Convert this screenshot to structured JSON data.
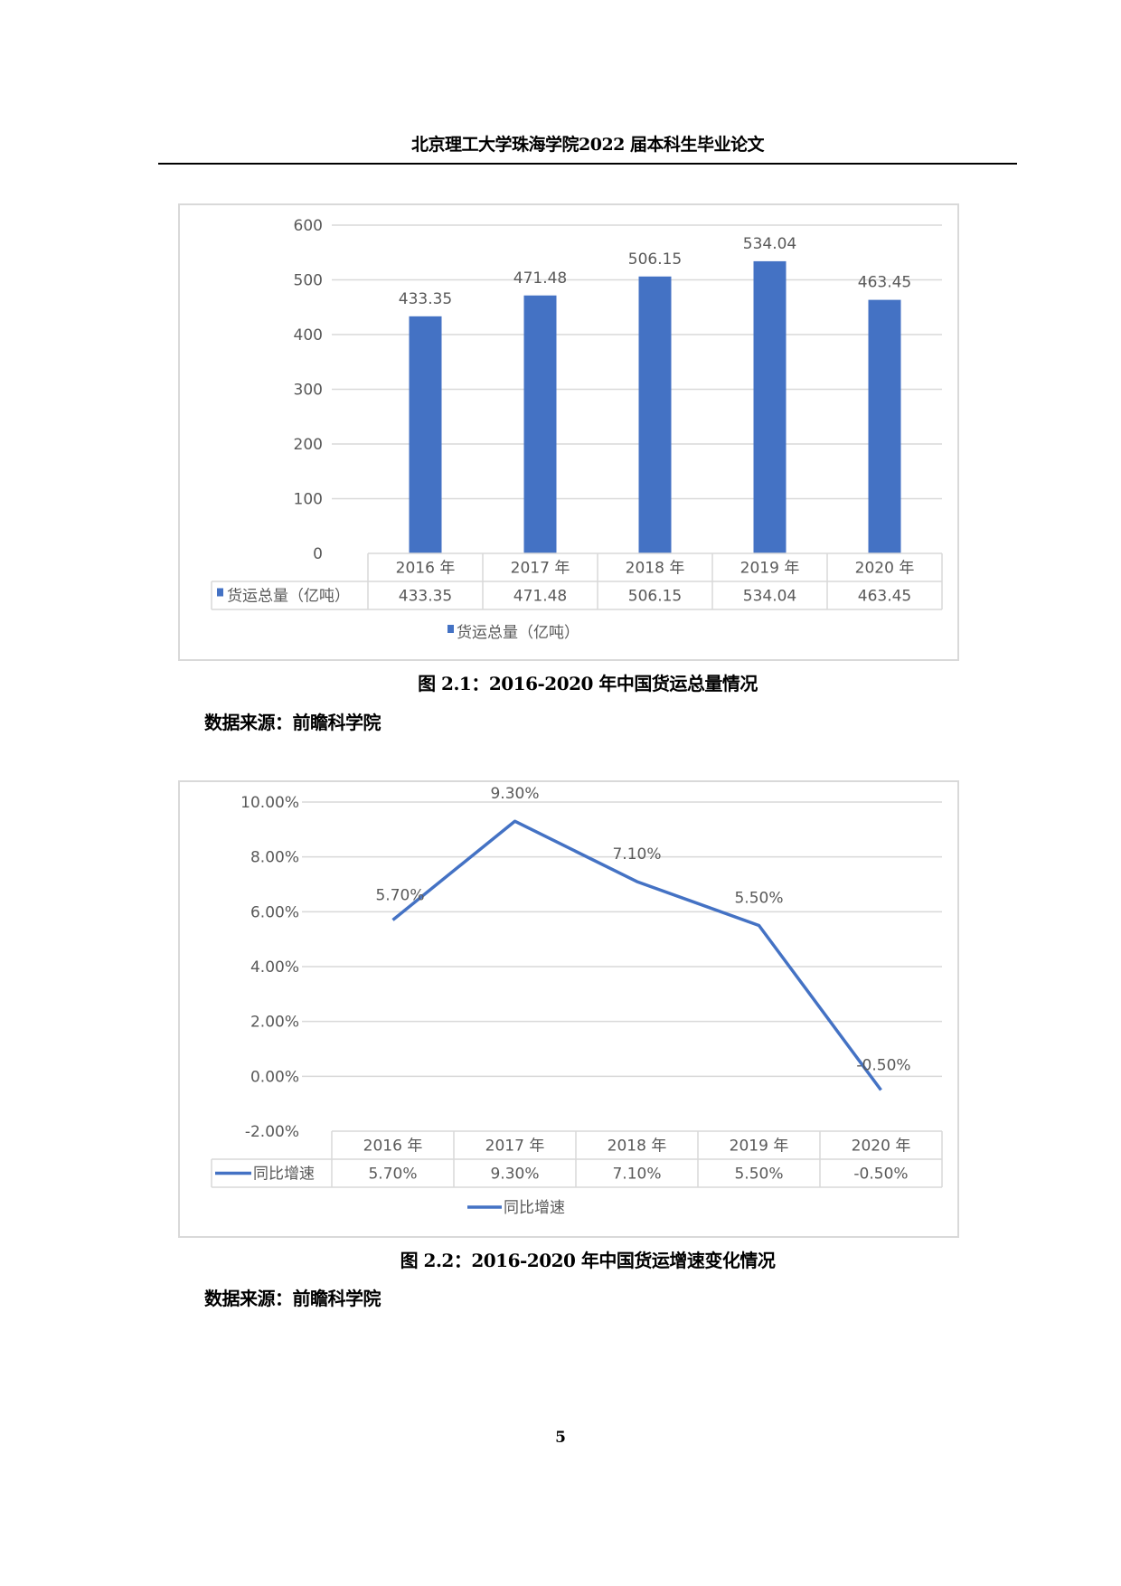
{
  "page": {
    "running_header": "北京理工大学珠海学院2022 届本科生毕业论文",
    "page_number": "5"
  },
  "figure1": {
    "caption": "图  2.1：2016-2020 年中国货运总量情况",
    "source": "数据来源：前瞻科学院",
    "series_label": "货运总量（亿吨）",
    "bar_color": "#4472c4",
    "y_ticks": [
      "600",
      "500",
      "400",
      "300",
      "200",
      "100",
      "0"
    ],
    "categories": [
      "2016 年",
      "2017 年",
      "2018 年",
      "2019 年",
      "2020 年"
    ],
    "values_text": [
      "433.35",
      "471.48",
      "506.15",
      "534.04",
      "463.45"
    ]
  },
  "figure2": {
    "caption": "图  2.2：2016-2020 年中国货运增速变化情况",
    "source": "数据来源：前瞻科学院",
    "series_label": "同比增速",
    "line_color": "#4472c4",
    "y_ticks": [
      "10.00%",
      "8.00%",
      "6.00%",
      "4.00%",
      "2.00%",
      "0.00%",
      "-2.00%"
    ],
    "categories": [
      "2016 年",
      "2017 年",
      "2018 年",
      "2019 年",
      "2020 年"
    ],
    "values_text": [
      "5.70%",
      "9.30%",
      "7.10%",
      "5.50%",
      "-0.50%"
    ]
  },
  "chart_data": [
    {
      "type": "bar",
      "title": "2016-2020 年中国货运总量情况",
      "categories": [
        "2016 年",
        "2017 年",
        "2018 年",
        "2019 年",
        "2020 年"
      ],
      "series": [
        {
          "name": "货运总量（亿吨）",
          "values": [
            433.35,
            471.48,
            506.15,
            534.04,
            463.45
          ]
        }
      ],
      "xlabel": "",
      "ylabel": "",
      "ylim": [
        0,
        600
      ],
      "y_ticks": [
        0,
        100,
        200,
        300,
        400,
        500,
        600
      ],
      "grid": true,
      "data_labels": true,
      "data_table": true,
      "legend_position": "bottom"
    },
    {
      "type": "line",
      "title": "2016-2020 年中国货运增速变化情况",
      "categories": [
        "2016 年",
        "2017 年",
        "2018 年",
        "2019 年",
        "2020 年"
      ],
      "series": [
        {
          "name": "同比增速",
          "values": [
            5.7,
            9.3,
            7.1,
            5.5,
            -0.5
          ],
          "unit": "%"
        }
      ],
      "xlabel": "",
      "ylabel": "",
      "ylim": [
        -2,
        10
      ],
      "y_ticks": [
        -2,
        0,
        2,
        4,
        6,
        8,
        10
      ],
      "grid": true,
      "data_labels": true,
      "data_table": true,
      "legend_position": "bottom"
    }
  ]
}
